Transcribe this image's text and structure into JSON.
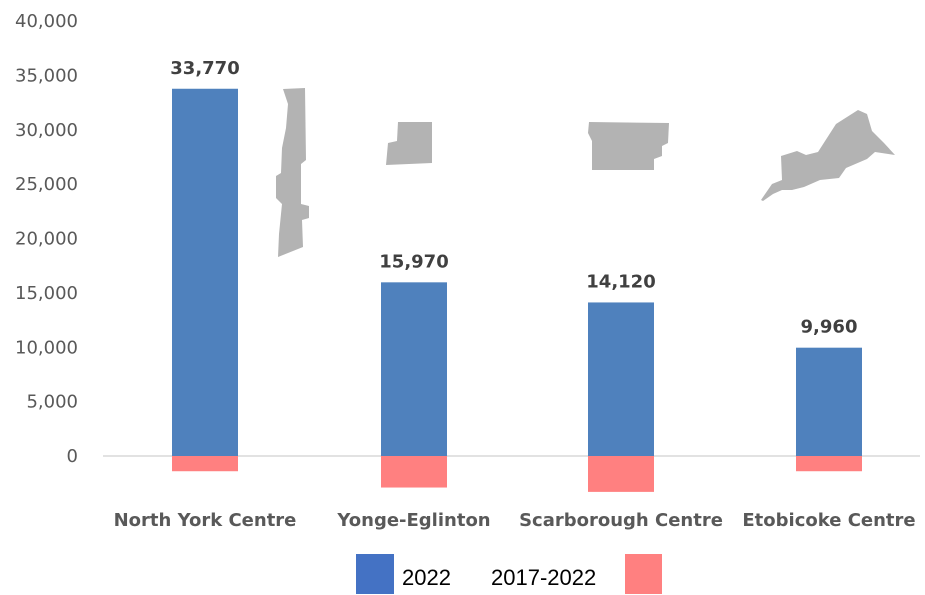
{
  "chart_data": {
    "type": "bar",
    "categories": [
      "North York Centre",
      "Yonge-Eglinton",
      "Scarborough Centre",
      "Etobicoke Centre"
    ],
    "series": [
      {
        "name": "2022",
        "values": [
          33770,
          15970,
          14120,
          9960
        ],
        "color": "#4f81bd",
        "data_labels": [
          "33,770",
          "15,970",
          "14,120",
          "9,960"
        ]
      },
      {
        "name": "2017-2022",
        "values": [
          -1400,
          -2900,
          -3300,
          -1400
        ],
        "color": "#ff8080"
      }
    ],
    "title": "",
    "xlabel": "",
    "ylabel": "",
    "ylim": [
      -3500,
      40000
    ],
    "yticks": [
      0,
      5000,
      10000,
      15000,
      20000,
      25000,
      30000,
      35000,
      40000
    ],
    "ytick_labels": [
      "0",
      "5,000",
      "10,000",
      "15,000",
      "20,000",
      "25,000",
      "30,000",
      "35,000",
      "40,000"
    ],
    "grid": false,
    "legend": {
      "position": "bottom",
      "entries": [
        {
          "label": "2022",
          "color": "#4472c4"
        },
        {
          "label": "2017-2022",
          "color": "#ff8080"
        }
      ]
    },
    "decorations": [
      "north-york-centre-map-icon",
      "yonge-eglinton-map-icon",
      "scarborough-centre-map-icon",
      "etobicoke-centre-map-icon"
    ],
    "decoration_color": "#b3b3b3"
  }
}
